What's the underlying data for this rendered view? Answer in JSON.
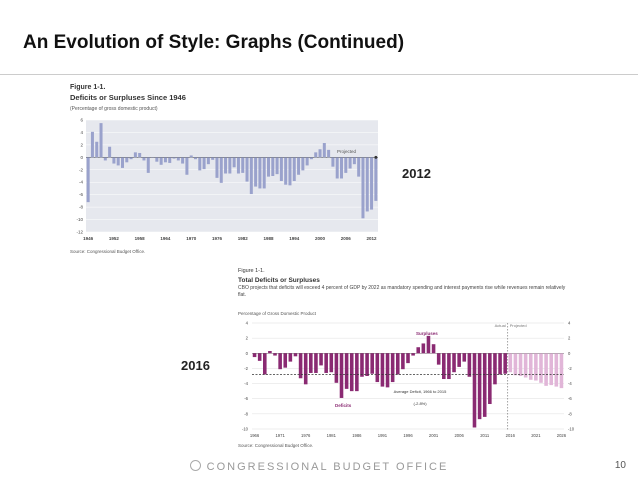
{
  "slide": {
    "title": "An Evolution of Style: Graphs (Continued)",
    "label_2012": "2012",
    "label_2016": "2016",
    "footer_org": "CONGRESSIONAL BUDGET OFFICE",
    "page_number": "10"
  },
  "chart_data": [
    {
      "type": "bar",
      "figure_label": "Figure 1-1.",
      "title": "Deficits or Surpluses Since 1946",
      "subtitle": "(Percentage of gross domestic product)",
      "annotation": "Projected",
      "source": "Source:   Congressional Budget Office.",
      "color": "#9aa2cc",
      "ylim": [
        -12,
        6
      ],
      "yticks": [
        6,
        4,
        2,
        0,
        -2,
        -4,
        -6,
        -8,
        -10,
        -12
      ],
      "xlabels": [
        "1946",
        "1952",
        "1958",
        "1964",
        "1970",
        "1976",
        "1982",
        "1988",
        "1994",
        "2000",
        "2006",
        "2012"
      ],
      "years_start": 1946,
      "values": [
        -7.2,
        4.1,
        2.5,
        5.5,
        -0.5,
        1.7,
        -1.0,
        -1.3,
        -1.7,
        -0.8,
        -0.3,
        0.8,
        0.7,
        -0.5,
        -2.5,
        0,
        -0.7,
        -1.2,
        -0.8,
        -0.9,
        -0.2,
        -0.5,
        -1.0,
        -2.8,
        0.3,
        -0.3,
        -2.1,
        -1.9,
        -1.1,
        -0.4,
        -3.3,
        -4.1,
        -2.6,
        -2.6,
        -1.6,
        -2.6,
        -2.5,
        -3.9,
        -5.9,
        -4.7,
        -5.0,
        -5.0,
        -3.1,
        -3.0,
        -2.7,
        -3.8,
        -4.4,
        -4.5,
        -3.8,
        -2.8,
        -2.1,
        -1.3,
        -0.3,
        0.8,
        1.3,
        2.3,
        1.2,
        -1.5,
        -3.4,
        -3.4,
        -2.5,
        -1.8,
        -1.1,
        -3.1,
        -9.8,
        -8.7,
        -8.4,
        -7.0
      ]
    },
    {
      "type": "bar",
      "figure_label": "Figure 1-1.",
      "title": "Total Deficits or Surpluses",
      "description": "CBO projects that deficits will exceed 4 percent of GDP by 2022 as mandatory spending and interest payments rise while revenues remain relatively flat.",
      "subtitle": "Percentage of Gross Domestic Product",
      "annotations": {
        "actual": "Actual",
        "projected": "Projected",
        "surpluses": "Surpluses",
        "deficits": "Deficits",
        "average": "Average Deficit, 1966 to 2015",
        "average_value": "(-2.8%)"
      },
      "source": "Source:  Congressional Budget Office.",
      "color_actual": "#8a2a72",
      "color_projected": "#e1b6d8",
      "average": -2.8,
      "ylim": [
        -10,
        4
      ],
      "yticks": [
        4,
        2,
        0,
        -2,
        -4,
        -6,
        -8,
        -10
      ],
      "xlabels": [
        "1966",
        "1971",
        "1976",
        "1981",
        "1986",
        "1991",
        "1996",
        "2001",
        "2006",
        "2011",
        "2016",
        "2021",
        "2026"
      ],
      "years_start": 1966,
      "projected_from": 2016,
      "values": [
        -0.5,
        -1.0,
        -2.8,
        0.3,
        -0.3,
        -2.1,
        -1.9,
        -1.1,
        -0.4,
        -3.3,
        -4.1,
        -2.6,
        -2.6,
        -1.6,
        -2.6,
        -2.5,
        -3.9,
        -5.9,
        -4.7,
        -5.0,
        -5.0,
        -3.1,
        -3.0,
        -2.7,
        -3.8,
        -4.4,
        -4.5,
        -3.8,
        -2.8,
        -2.1,
        -1.3,
        -0.3,
        0.8,
        1.3,
        2.3,
        1.2,
        -1.5,
        -3.4,
        -3.4,
        -2.5,
        -1.8,
        -1.1,
        -3.1,
        -9.8,
        -8.7,
        -8.4,
        -6.7,
        -4.1,
        -2.8,
        -2.7,
        -2.5,
        -2.9,
        -3.0,
        -3.2,
        -3.5,
        -3.6,
        -3.9,
        -4.3,
        -4.2,
        -4.4,
        -4.6
      ]
    }
  ]
}
